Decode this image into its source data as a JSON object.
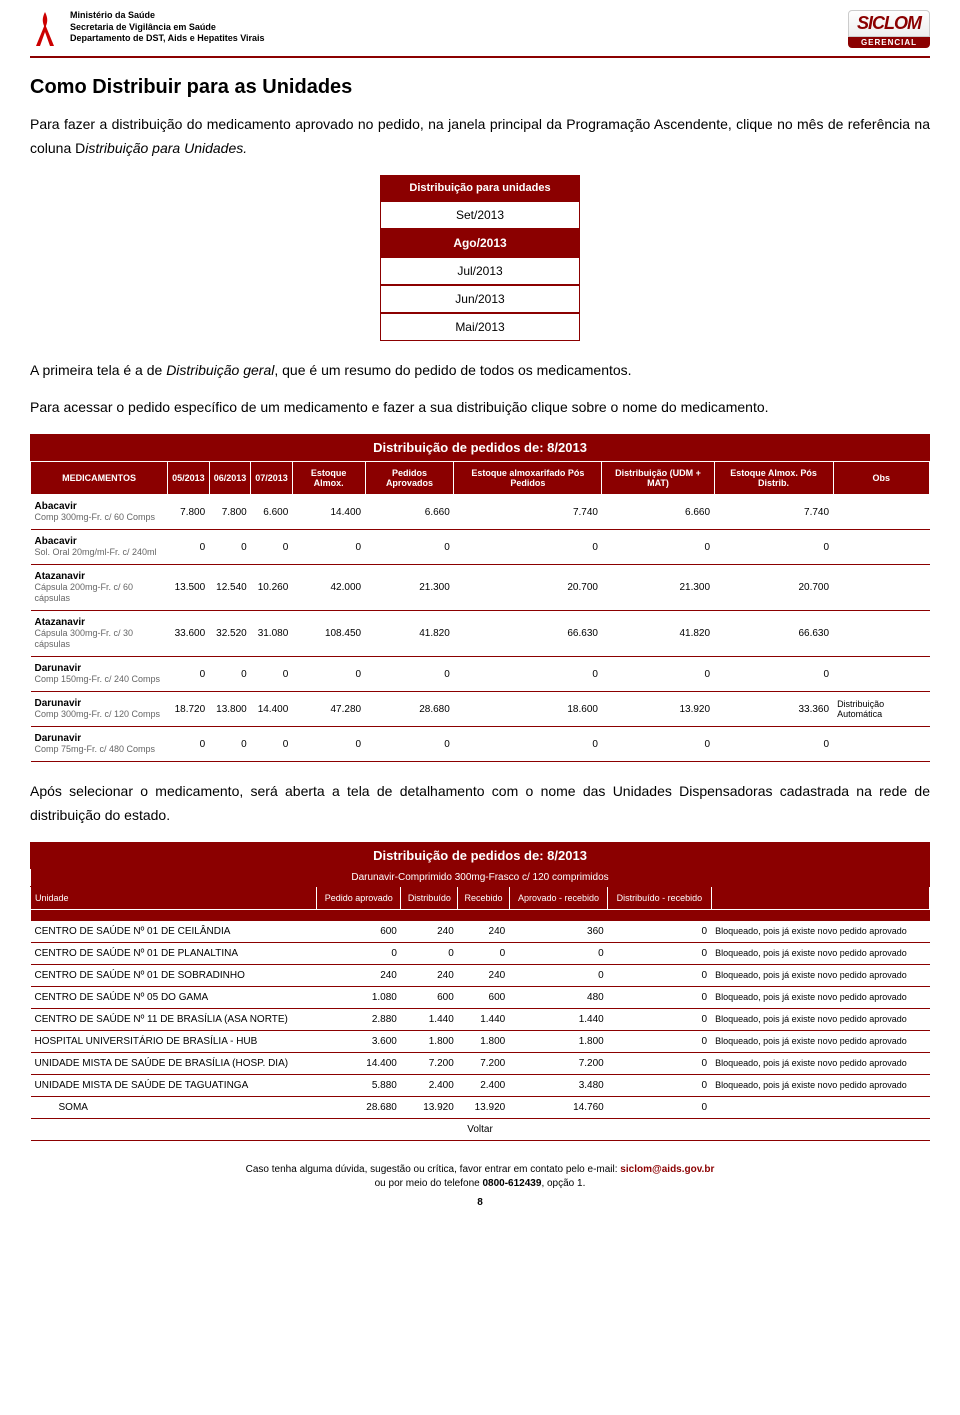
{
  "header": {
    "ministry": "Ministério da Saúde",
    "secretary": "Secretaria de Vigilância em Saúde",
    "department": "Departamento de DST, Aids e Hepatites Virais",
    "logo_top": "SICLOM",
    "logo_bottom": "GERENCIAL"
  },
  "title": "Como Distribuir para as Unidades",
  "para1_a": "Para fazer a distribuição do medicamento aprovado no pedido, na janela principal da Programação Ascendente, clique no mês de referência na coluna D",
  "para1_b": "istribuição para Unidades.",
  "month_box": {
    "header": "Distribuição para unidades",
    "months": [
      "Set/2013",
      "Ago/2013",
      "Jul/2013",
      "Jun/2013",
      "Mai/2013"
    ],
    "selected_index": 1
  },
  "para2_a": "A primeira tela é a de ",
  "para2_b": "Distribuição geral",
  "para2_c": ", que é um resumo do pedido de todos os medicamentos.",
  "para3": "Para acessar o pedido específico de um medicamento e fazer a sua distribuição clique sobre o nome do medicamento.",
  "dist_table": {
    "caption": "Distribuição de pedidos de: 8/2013",
    "columns": [
      "MEDICAMENTOS",
      "05/2013",
      "06/2013",
      "07/2013",
      "Estoque Almox.",
      "Pedidos Aprovados",
      "Estoque almoxarifado Pós Pedidos",
      "Distribuição (UDM + MAT)",
      "Estoque Almox. Pós Distrib.",
      "Obs"
    ],
    "rows": [
      {
        "drug": "Abacavir",
        "form": "Comp 300mg-Fr. c/ 60 Comps",
        "v": [
          "7.800",
          "7.800",
          "6.600",
          "14.400",
          "6.660",
          "7.740",
          "6.660",
          "7.740",
          ""
        ]
      },
      {
        "drug": "Abacavir",
        "form": "Sol. Oral 20mg/ml-Fr. c/ 240ml",
        "v": [
          "0",
          "0",
          "0",
          "0",
          "0",
          "0",
          "0",
          "0",
          ""
        ]
      },
      {
        "drug": "Atazanavir",
        "form": "Cápsula 200mg-Fr. c/ 60 cápsulas",
        "v": [
          "13.500",
          "12.540",
          "10.260",
          "42.000",
          "21.300",
          "20.700",
          "21.300",
          "20.700",
          ""
        ]
      },
      {
        "drug": "Atazanavir",
        "form": "Cápsula 300mg-Fr. c/ 30 cápsulas",
        "v": [
          "33.600",
          "32.520",
          "31.080",
          "108.450",
          "41.820",
          "66.630",
          "41.820",
          "66.630",
          ""
        ]
      },
      {
        "drug": "Darunavir",
        "form": "Comp 150mg-Fr. c/ 240 Comps",
        "v": [
          "0",
          "0",
          "0",
          "0",
          "0",
          "0",
          "0",
          "0",
          ""
        ]
      },
      {
        "drug": "Darunavir",
        "form": "Comp 300mg-Fr. c/ 120 Comps",
        "v": [
          "18.720",
          "13.800",
          "14.400",
          "47.280",
          "28.680",
          "18.600",
          "13.920",
          "33.360",
          "Distribuição Automática"
        ]
      },
      {
        "drug": "Darunavir",
        "form": "Comp 75mg-Fr. c/ 480 Comps",
        "v": [
          "0",
          "0",
          "0",
          "0",
          "0",
          "0",
          "0",
          "0",
          ""
        ]
      }
    ]
  },
  "para4": "Após selecionar o medicamento, será aberta a tela de detalhamento com o nome das Unidades Dispensadoras cadastrada na rede de distribuição do estado.",
  "unit_table": {
    "caption": "Distribuição de pedidos de: 8/2013",
    "subcaption": "Darunavir-Comprimido 300mg-Frasco c/ 120 comprimidos",
    "columns": [
      "Unidade",
      "Pedido aprovado",
      "Distribuído",
      "Recebido",
      "Aprovado - recebido",
      "Distribuído - recebido",
      ""
    ],
    "rows": [
      {
        "name": "CENTRO DE SAÚDE Nº 01 DE CEILÂNDIA",
        "v": [
          "600",
          "240",
          "240",
          "360",
          "0"
        ],
        "status": "Bloqueado, pois já existe novo pedido aprovado"
      },
      {
        "name": "CENTRO DE SAÚDE Nº 01 DE PLANALTINA",
        "v": [
          "0",
          "0",
          "0",
          "0",
          "0"
        ],
        "status": "Bloqueado, pois já existe novo pedido aprovado"
      },
      {
        "name": "CENTRO DE SAÚDE Nº 01 DE SOBRADINHO",
        "v": [
          "240",
          "240",
          "240",
          "0",
          "0"
        ],
        "status": "Bloqueado, pois já existe novo pedido aprovado"
      },
      {
        "name": "CENTRO DE SAÚDE Nº 05 DO GAMA",
        "v": [
          "1.080",
          "600",
          "600",
          "480",
          "0"
        ],
        "status": "Bloqueado, pois já existe novo pedido aprovado"
      },
      {
        "name": "CENTRO DE SAÚDE Nº 11 DE BRASÍLIA (ASA NORTE)",
        "v": [
          "2.880",
          "1.440",
          "1.440",
          "1.440",
          "0"
        ],
        "status": "Bloqueado, pois já existe novo pedido aprovado"
      },
      {
        "name": "HOSPITAL UNIVERSITÁRIO DE BRASÍLIA - HUB",
        "v": [
          "3.600",
          "1.800",
          "1.800",
          "1.800",
          "0"
        ],
        "status": "Bloqueado, pois já existe novo pedido aprovado"
      },
      {
        "name": "UNIDADE MISTA DE SAÚDE DE BRASÍLIA (HOSP. DIA)",
        "v": [
          "14.400",
          "7.200",
          "7.200",
          "7.200",
          "0"
        ],
        "status": "Bloqueado, pois já existe novo pedido aprovado"
      },
      {
        "name": "UNIDADE MISTA DE SAÚDE DE TAGUATINGA",
        "v": [
          "5.880",
          "2.400",
          "2.400",
          "3.480",
          "0"
        ],
        "status": "Bloqueado, pois já existe novo pedido aprovado"
      }
    ],
    "soma_label": "SOMA",
    "soma": [
      "28.680",
      "13.920",
      "13.920",
      "14.760",
      "0"
    ],
    "voltar": "Voltar"
  },
  "footer": {
    "line1_a": "Caso tenha alguma dúvida, sugestão ou crítica, favor entrar em contato pelo e-mail: ",
    "email": "siclom@aids.gov.br",
    "line2_a": "ou por meio do telefone ",
    "phone": "0800-612439",
    "line2_b": ", opção 1."
  },
  "pagenum": "8",
  "colors": {
    "brand": "#8B0000",
    "text": "#000000",
    "muted": "#666666"
  }
}
